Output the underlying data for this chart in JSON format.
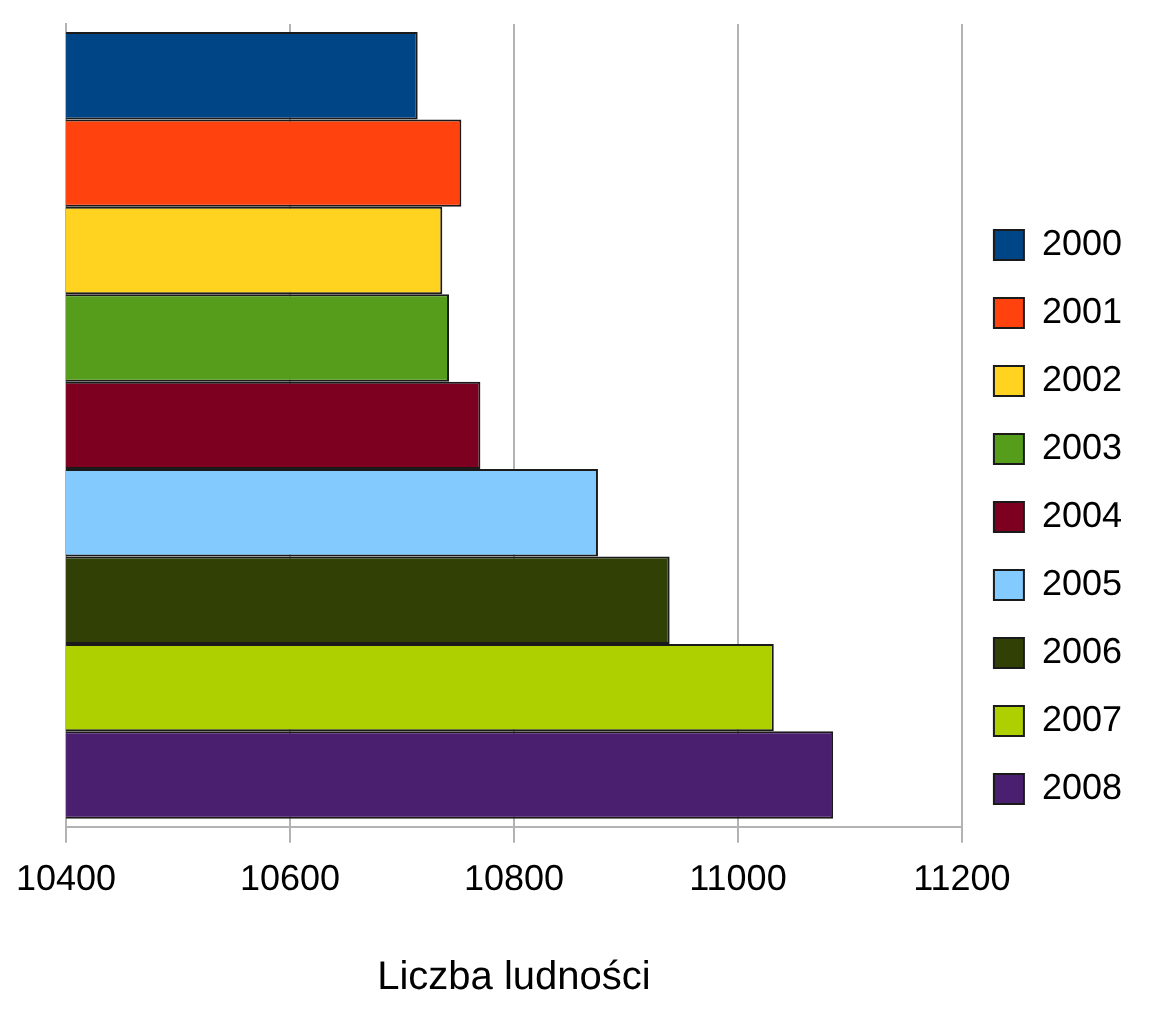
{
  "chart_data": {
    "type": "bar",
    "orientation": "horizontal",
    "xlabel": "Liczba ludności",
    "categories": [
      null
    ],
    "series": [
      {
        "name": "2000",
        "color": "#004586",
        "values": [
          10714
        ]
      },
      {
        "name": "2001",
        "color": "#ff420e",
        "values": [
          10753
        ]
      },
      {
        "name": "2002",
        "color": "#ffd320",
        "values": [
          10736
        ]
      },
      {
        "name": "2003",
        "color": "#579d1c",
        "values": [
          10742
        ]
      },
      {
        "name": "2004",
        "color": "#7e0021",
        "values": [
          10770
        ]
      },
      {
        "name": "2005",
        "color": "#83caff",
        "values": [
          10875
        ]
      },
      {
        "name": "2006",
        "color": "#314004",
        "values": [
          10939
        ]
      },
      {
        "name": "2007",
        "color": "#aecf00",
        "values": [
          11032
        ]
      },
      {
        "name": "2008",
        "color": "#4b1f6f",
        "values": [
          11085
        ]
      }
    ],
    "xlim": [
      10400,
      11200
    ],
    "xticks": [
      10400,
      10600,
      10800,
      11000,
      11200
    ],
    "grid": "x",
    "legend": "right"
  }
}
